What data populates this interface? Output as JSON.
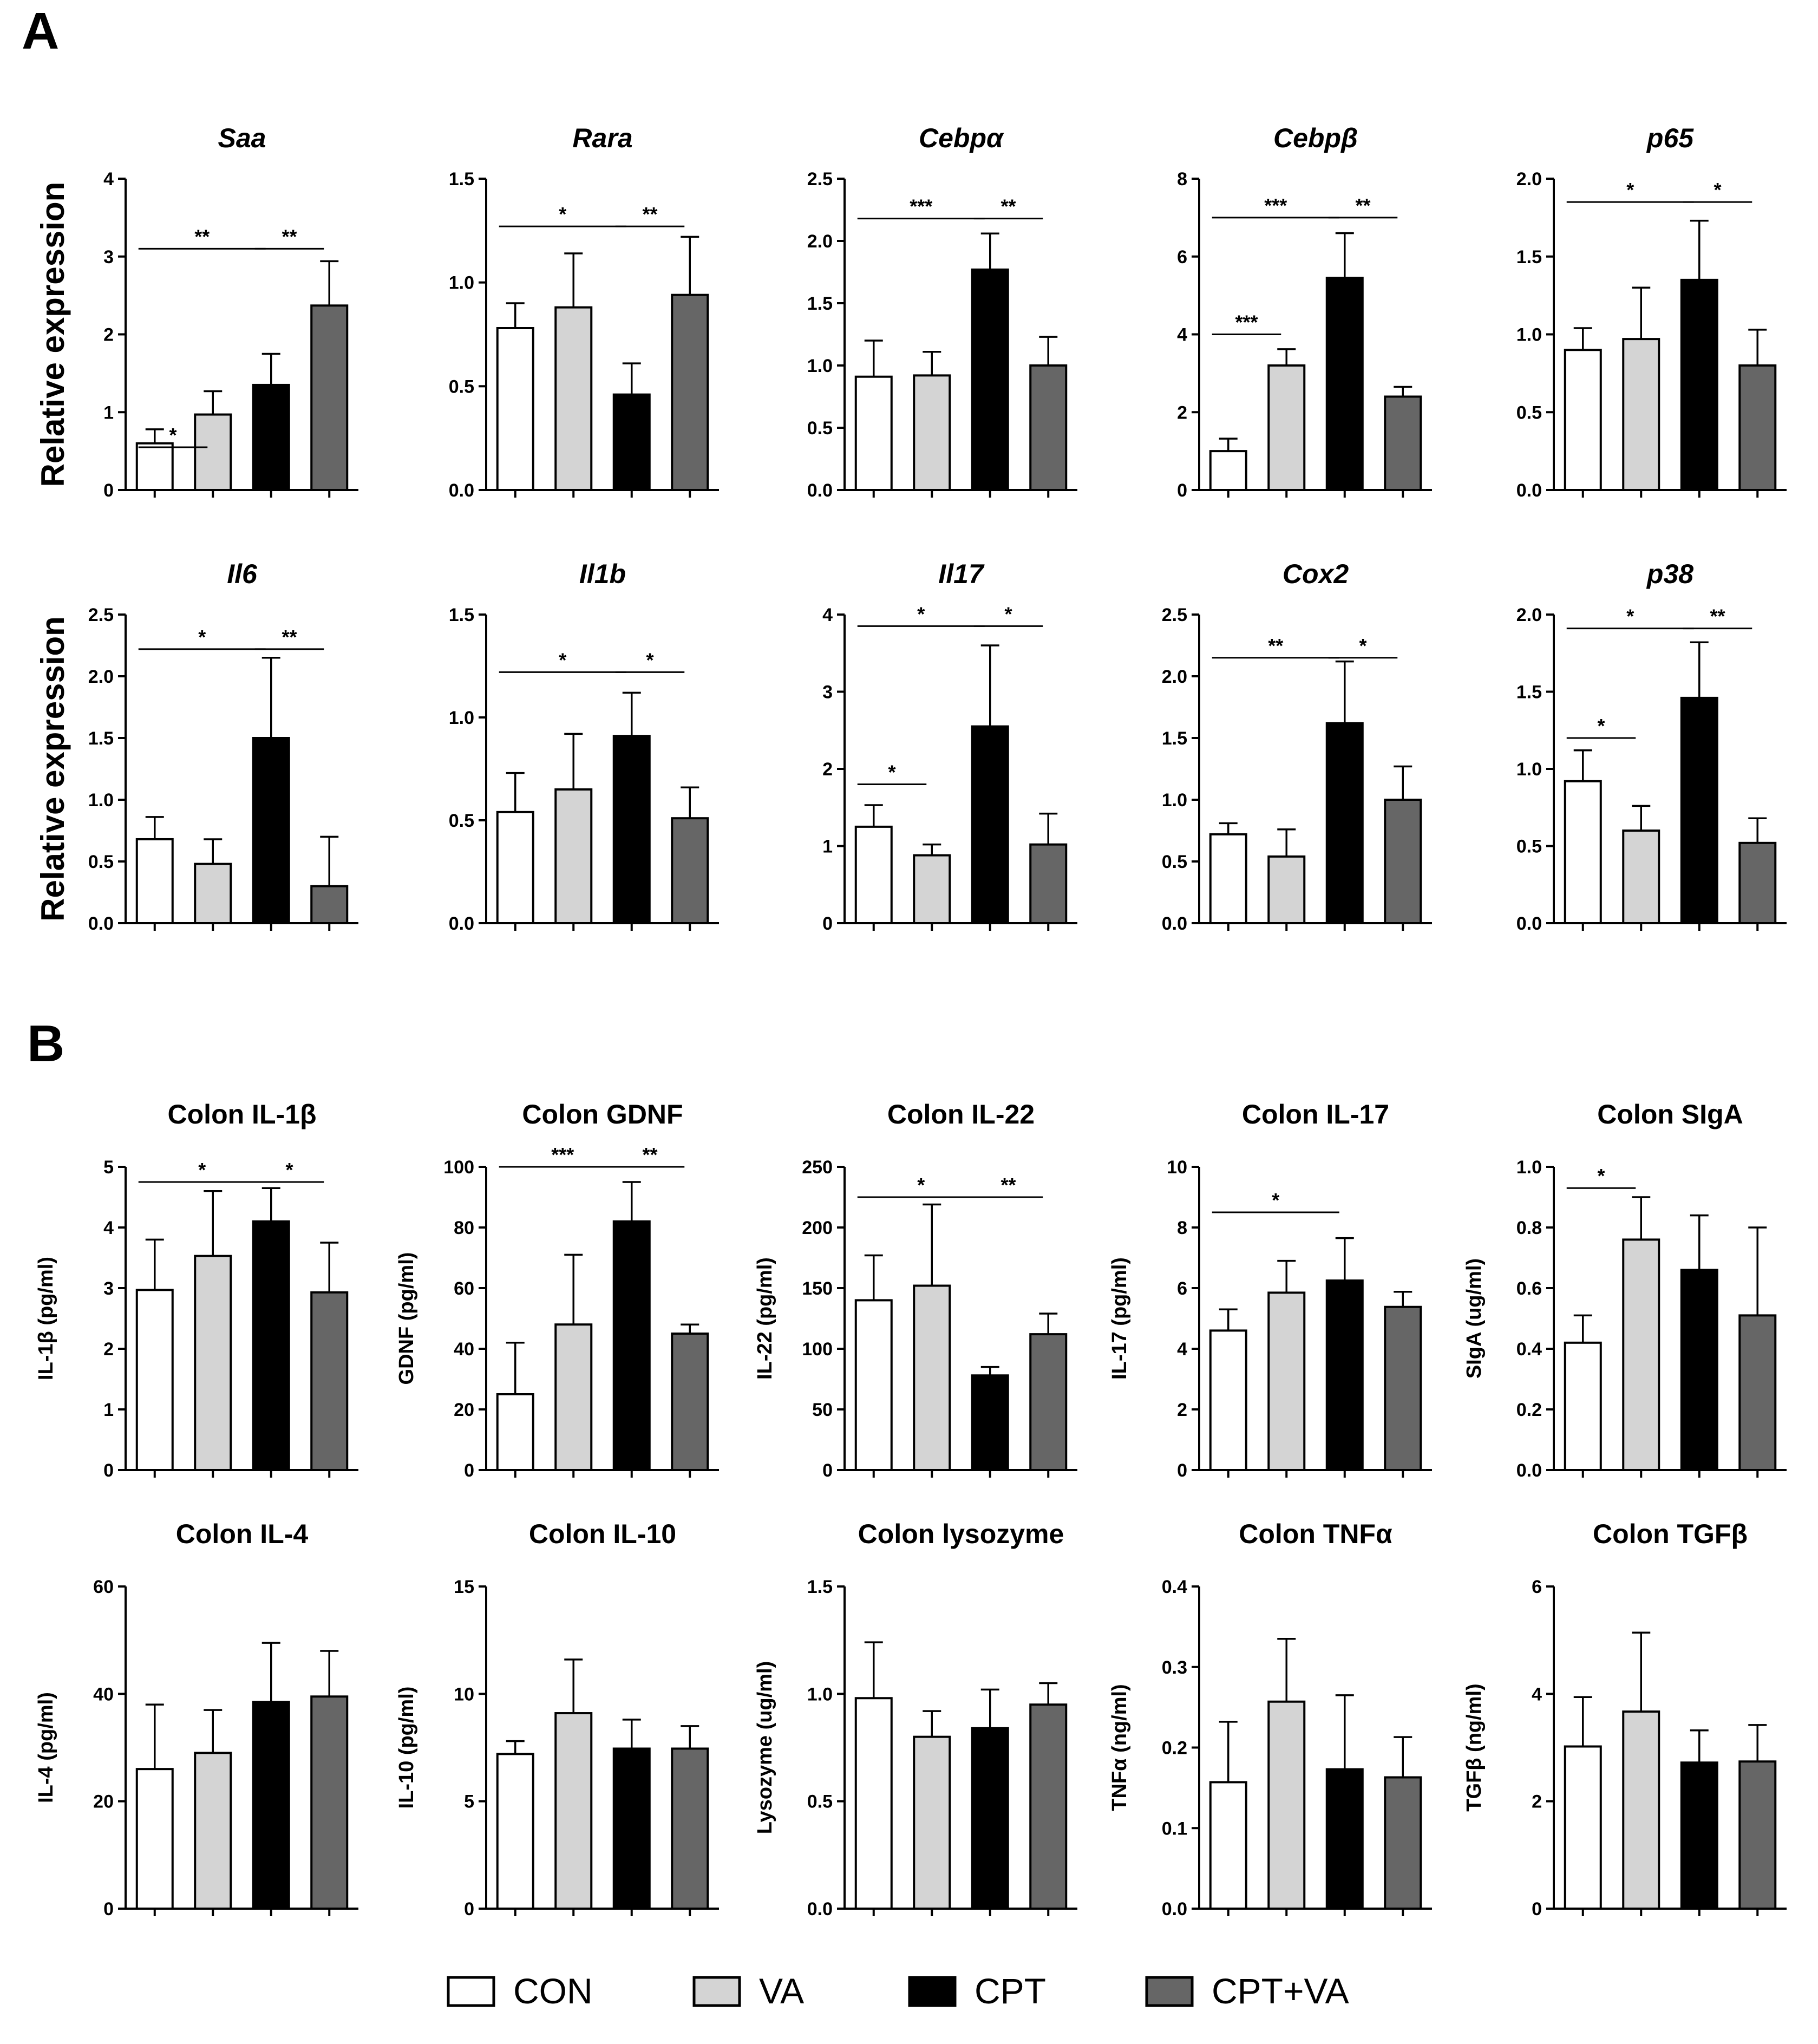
{
  "panels": [
    {
      "letter": "A"
    },
    {
      "letter": "B"
    }
  ],
  "legend": [
    {
      "label": "CON",
      "color": "#ffffff"
    },
    {
      "label": "VA",
      "color": "#d4d4d4"
    },
    {
      "label": "CPT",
      "color": "#000000"
    },
    {
      "label": "CPT+VA",
      "color": "#666666"
    }
  ],
  "chart_data": [
    {
      "panel": "A",
      "type": "bar",
      "title": "Saa",
      "italic": true,
      "ylabel": "Relative expression",
      "categories": [
        "CON",
        "VA",
        "CPT",
        "CPT+VA"
      ],
      "values": [
        0.6,
        0.97,
        1.35,
        2.37
      ],
      "errors": [
        0.18,
        0.3,
        0.4,
        0.57
      ],
      "ylim": [
        0,
        4
      ],
      "yticks": [
        "0",
        "1",
        "2",
        "3",
        "4"
      ],
      "significance": [
        {
          "from": 0,
          "to": 1,
          "level": 0.55,
          "label": "*"
        },
        {
          "from": 0,
          "to": 2,
          "level": 3.1,
          "label": "**"
        },
        {
          "from": 2,
          "to": 3,
          "level": 3.1,
          "label": "**"
        }
      ]
    },
    {
      "panel": "A",
      "type": "bar",
      "title": "Rara",
      "italic": true,
      "ylabel": "",
      "categories": [
        "CON",
        "VA",
        "CPT",
        "CPT+VA"
      ],
      "values": [
        0.78,
        0.88,
        0.46,
        0.94
      ],
      "errors": [
        0.12,
        0.26,
        0.15,
        0.28
      ],
      "ylim": [
        0,
        1.5
      ],
      "yticks": [
        "0.0",
        "0.5",
        "1.0",
        "1.5"
      ],
      "significance": [
        {
          "from": 0,
          "to": 2,
          "level": 1.27,
          "label": "*"
        },
        {
          "from": 2,
          "to": 3,
          "level": 1.27,
          "label": "**"
        }
      ]
    },
    {
      "panel": "A",
      "type": "bar",
      "title": "Cebpα",
      "italic": true,
      "ylabel": "",
      "categories": [
        "CON",
        "VA",
        "CPT",
        "CPT+VA"
      ],
      "values": [
        0.91,
        0.92,
        1.77,
        1.0
      ],
      "errors": [
        0.29,
        0.19,
        0.29,
        0.23
      ],
      "ylim": [
        0,
        2.5
      ],
      "yticks": [
        "0.0",
        "0.5",
        "1.0",
        "1.5",
        "2.0",
        "2.5"
      ],
      "significance": [
        {
          "from": 0,
          "to": 2,
          "level": 2.18,
          "label": "***"
        },
        {
          "from": 2,
          "to": 3,
          "level": 2.18,
          "label": "**"
        }
      ]
    },
    {
      "panel": "A",
      "type": "bar",
      "title": "Cebpβ",
      "italic": true,
      "ylabel": "",
      "categories": [
        "CON",
        "VA",
        "CPT",
        "CPT+VA"
      ],
      "values": [
        1.0,
        3.2,
        5.45,
        2.4
      ],
      "errors": [
        0.32,
        0.42,
        1.15,
        0.25
      ],
      "ylim": [
        0,
        8
      ],
      "yticks": [
        "0",
        "2",
        "4",
        "6",
        "8"
      ],
      "significance": [
        {
          "from": 0,
          "to": 1,
          "level": 4.0,
          "label": "***"
        },
        {
          "from": 0,
          "to": 2,
          "level": 7.0,
          "label": "***"
        },
        {
          "from": 2,
          "to": 3,
          "level": 7.0,
          "label": "**"
        }
      ]
    },
    {
      "panel": "A",
      "type": "bar",
      "title": "p65",
      "italic": true,
      "ylabel": "",
      "categories": [
        "CON",
        "VA",
        "CPT",
        "CPT+VA"
      ],
      "values": [
        0.9,
        0.97,
        1.35,
        0.8
      ],
      "errors": [
        0.14,
        0.33,
        0.38,
        0.23
      ],
      "ylim": [
        0,
        2.0
      ],
      "yticks": [
        "0.0",
        "0.5",
        "1.0",
        "1.5",
        "2.0"
      ],
      "significance": [
        {
          "from": 0,
          "to": 2,
          "level": 1.85,
          "label": "*"
        },
        {
          "from": 2,
          "to": 3,
          "level": 1.85,
          "label": "*"
        }
      ]
    },
    {
      "panel": "A",
      "type": "bar",
      "title": "Il6",
      "italic": true,
      "ylabel": "Relative expression",
      "categories": [
        "CON",
        "VA",
        "CPT",
        "CPT+VA"
      ],
      "values": [
        0.68,
        0.48,
        1.5,
        0.3
      ],
      "errors": [
        0.18,
        0.2,
        0.65,
        0.4
      ],
      "ylim": [
        0,
        2.5
      ],
      "yticks": [
        "0.0",
        "0.5",
        "1.0",
        "1.5",
        "2.0",
        "2.5"
      ],
      "significance": [
        {
          "from": 0,
          "to": 2,
          "level": 2.22,
          "label": "*"
        },
        {
          "from": 2,
          "to": 3,
          "level": 2.22,
          "label": "**"
        }
      ]
    },
    {
      "panel": "A",
      "type": "bar",
      "title": "Il1b",
      "italic": true,
      "ylabel": "",
      "categories": [
        "CON",
        "VA",
        "CPT",
        "CPT+VA"
      ],
      "values": [
        0.54,
        0.65,
        0.91,
        0.51
      ],
      "errors": [
        0.19,
        0.27,
        0.21,
        0.15
      ],
      "ylim": [
        0,
        1.5
      ],
      "yticks": [
        "0.0",
        "0.5",
        "1.0",
        "1.5"
      ],
      "significance": [
        {
          "from": 0,
          "to": 2,
          "level": 1.22,
          "label": "*"
        },
        {
          "from": 2,
          "to": 3,
          "level": 1.22,
          "label": "*"
        }
      ]
    },
    {
      "panel": "A",
      "type": "bar",
      "title": "Il17",
      "italic": true,
      "ylabel": "",
      "categories": [
        "CON",
        "VA",
        "CPT",
        "CPT+VA"
      ],
      "values": [
        1.25,
        0.88,
        2.55,
        1.02
      ],
      "errors": [
        0.28,
        0.14,
        1.05,
        0.4
      ],
      "ylim": [
        0,
        4
      ],
      "yticks": [
        "0",
        "1",
        "2",
        "3",
        "4"
      ],
      "significance": [
        {
          "from": 0,
          "to": 1,
          "level": 1.8,
          "label": "*"
        },
        {
          "from": 0,
          "to": 2,
          "level": 3.85,
          "label": "*"
        },
        {
          "from": 2,
          "to": 3,
          "level": 3.85,
          "label": "*"
        }
      ]
    },
    {
      "panel": "A",
      "type": "bar",
      "title": "Cox2",
      "italic": true,
      "ylabel": "",
      "categories": [
        "CON",
        "VA",
        "CPT",
        "CPT+VA"
      ],
      "values": [
        0.72,
        0.54,
        1.62,
        1.0
      ],
      "errors": [
        0.09,
        0.22,
        0.5,
        0.27
      ],
      "ylim": [
        0,
        2.5
      ],
      "yticks": [
        "0.0",
        "0.5",
        "1.0",
        "1.5",
        "2.0",
        "2.5"
      ],
      "significance": [
        {
          "from": 0,
          "to": 2,
          "level": 2.15,
          "label": "**"
        },
        {
          "from": 2,
          "to": 3,
          "level": 2.15,
          "label": "*"
        }
      ]
    },
    {
      "panel": "A",
      "type": "bar",
      "title": "p38",
      "italic": true,
      "ylabel": "",
      "categories": [
        "CON",
        "VA",
        "CPT",
        "CPT+VA"
      ],
      "values": [
        0.92,
        0.6,
        1.46,
        0.52
      ],
      "errors": [
        0.2,
        0.16,
        0.36,
        0.16
      ],
      "ylim": [
        0,
        2.0
      ],
      "yticks": [
        "0.0",
        "0.5",
        "1.0",
        "1.5",
        "2.0"
      ],
      "significance": [
        {
          "from": 0,
          "to": 1,
          "level": 1.2,
          "label": "*"
        },
        {
          "from": 0,
          "to": 2,
          "level": 1.91,
          "label": "*"
        },
        {
          "from": 2,
          "to": 3,
          "level": 1.91,
          "label": "**"
        }
      ]
    },
    {
      "panel": "B",
      "type": "bar",
      "title": "Colon IL-1β",
      "italic": false,
      "ylabel": "IL-1β (pg/ml)",
      "categories": [
        "CON",
        "VA",
        "CPT",
        "CPT+VA"
      ],
      "values": [
        2.97,
        3.53,
        4.1,
        2.93
      ],
      "errors": [
        0.83,
        1.07,
        0.55,
        0.82
      ],
      "ylim": [
        0,
        5
      ],
      "yticks": [
        "0",
        "1",
        "2",
        "3",
        "4",
        "5"
      ],
      "significance": [
        {
          "from": 0,
          "to": 2,
          "level": 4.75,
          "label": "*"
        },
        {
          "from": 2,
          "to": 3,
          "level": 4.75,
          "label": "*"
        }
      ]
    },
    {
      "panel": "B",
      "type": "bar",
      "title": "Colon GDNF",
      "italic": false,
      "ylabel": "GDNF (pg/ml)",
      "categories": [
        "CON",
        "VA",
        "CPT",
        "CPT+VA"
      ],
      "values": [
        25,
        48,
        82,
        45
      ],
      "errors": [
        17,
        23,
        13,
        3
      ],
      "ylim": [
        0,
        100
      ],
      "yticks": [
        "0",
        "20",
        "40",
        "60",
        "80",
        "100"
      ],
      "significance": [
        {
          "from": 0,
          "to": 2,
          "level": 100,
          "label": "***"
        },
        {
          "from": 2,
          "to": 3,
          "level": 100,
          "label": "**"
        }
      ]
    },
    {
      "panel": "B",
      "type": "bar",
      "title": "Colon IL-22",
      "italic": false,
      "ylabel": "IL-22 (pg/ml)",
      "categories": [
        "CON",
        "VA",
        "CPT",
        "CPT+VA"
      ],
      "values": [
        140,
        152,
        78,
        112
      ],
      "errors": [
        37,
        67,
        7,
        17
      ],
      "ylim": [
        0,
        250
      ],
      "yticks": [
        "0",
        "50",
        "100",
        "150",
        "200",
        "250"
      ],
      "significance": [
        {
          "from": 0,
          "to": 2,
          "level": 225,
          "label": "*"
        },
        {
          "from": 2,
          "to": 3,
          "level": 225,
          "label": "**"
        }
      ]
    },
    {
      "panel": "B",
      "type": "bar",
      "title": "Colon IL-17",
      "italic": false,
      "ylabel": "IL-17 (pg/ml)",
      "categories": [
        "CON",
        "VA",
        "CPT",
        "CPT+VA"
      ],
      "values": [
        4.6,
        5.85,
        6.25,
        5.38
      ],
      "errors": [
        0.7,
        1.05,
        1.4,
        0.5
      ],
      "ylim": [
        0,
        10
      ],
      "yticks": [
        "0",
        "2",
        "4",
        "6",
        "8",
        "10"
      ],
      "significance": [
        {
          "from": 0,
          "to": 2,
          "level": 8.5,
          "label": "*"
        }
      ]
    },
    {
      "panel": "B",
      "type": "bar",
      "title": "Colon SIgA",
      "italic": false,
      "ylabel": "SIgA (ug/ml)",
      "categories": [
        "CON",
        "VA",
        "CPT",
        "CPT+VA"
      ],
      "values": [
        0.42,
        0.76,
        0.66,
        0.51
      ],
      "errors": [
        0.09,
        0.14,
        0.18,
        0.29
      ],
      "ylim": [
        0,
        1.0
      ],
      "yticks": [
        "0.0",
        "0.2",
        "0.4",
        "0.6",
        "0.8",
        "1.0"
      ],
      "significance": [
        {
          "from": 0,
          "to": 1,
          "level": 0.93,
          "label": "*"
        }
      ]
    },
    {
      "panel": "B",
      "type": "bar",
      "title": "Colon IL-4",
      "italic": false,
      "ylabel": "IL-4 (pg/ml)",
      "categories": [
        "CON",
        "VA",
        "CPT",
        "CPT+VA"
      ],
      "values": [
        26,
        29,
        38.5,
        39.5
      ],
      "errors": [
        12,
        8,
        11,
        8.5
      ],
      "ylim": [
        0,
        60
      ],
      "yticks": [
        "0",
        "20",
        "40",
        "60"
      ],
      "significance": []
    },
    {
      "panel": "B",
      "type": "bar",
      "title": "Colon IL-10",
      "italic": false,
      "ylabel": "IL-10 (pg/ml)",
      "categories": [
        "CON",
        "VA",
        "CPT",
        "CPT+VA"
      ],
      "values": [
        7.2,
        9.1,
        7.45,
        7.45
      ],
      "errors": [
        0.6,
        2.5,
        1.35,
        1.05
      ],
      "ylim": [
        0,
        15
      ],
      "yticks": [
        "0",
        "5",
        "10",
        "15"
      ],
      "significance": []
    },
    {
      "panel": "B",
      "type": "bar",
      "title": "Colon lysozyme",
      "italic": false,
      "ylabel": "Lysozyme (ug/ml)",
      "categories": [
        "CON",
        "VA",
        "CPT",
        "CPT+VA"
      ],
      "values": [
        0.98,
        0.8,
        0.84,
        0.95
      ],
      "errors": [
        0.26,
        0.12,
        0.18,
        0.1
      ],
      "ylim": [
        0,
        1.5
      ],
      "yticks": [
        "0.0",
        "0.5",
        "1.0",
        "1.5"
      ],
      "significance": []
    },
    {
      "panel": "B",
      "type": "bar",
      "title": "Colon TNFα",
      "italic": false,
      "ylabel": "TNFα (ng/ml)",
      "categories": [
        "CON",
        "VA",
        "CPT",
        "CPT+VA"
      ],
      "values": [
        0.157,
        0.257,
        0.173,
        0.163
      ],
      "errors": [
        0.075,
        0.078,
        0.092,
        0.05
      ],
      "ylim": [
        0,
        0.4
      ],
      "yticks": [
        "0.0",
        "0.1",
        "0.2",
        "0.3",
        "0.4"
      ],
      "significance": []
    },
    {
      "panel": "B",
      "type": "bar",
      "title": "Colon TGFβ",
      "italic": false,
      "ylabel": "TGFβ (ng/ml)",
      "categories": [
        "CON",
        "VA",
        "CPT",
        "CPT+VA"
      ],
      "values": [
        3.02,
        3.67,
        2.72,
        2.74
      ],
      "errors": [
        0.92,
        1.47,
        0.6,
        0.68
      ],
      "ylim": [
        0,
        6
      ],
      "yticks": [
        "0",
        "2",
        "4",
        "6"
      ],
      "significance": []
    }
  ]
}
